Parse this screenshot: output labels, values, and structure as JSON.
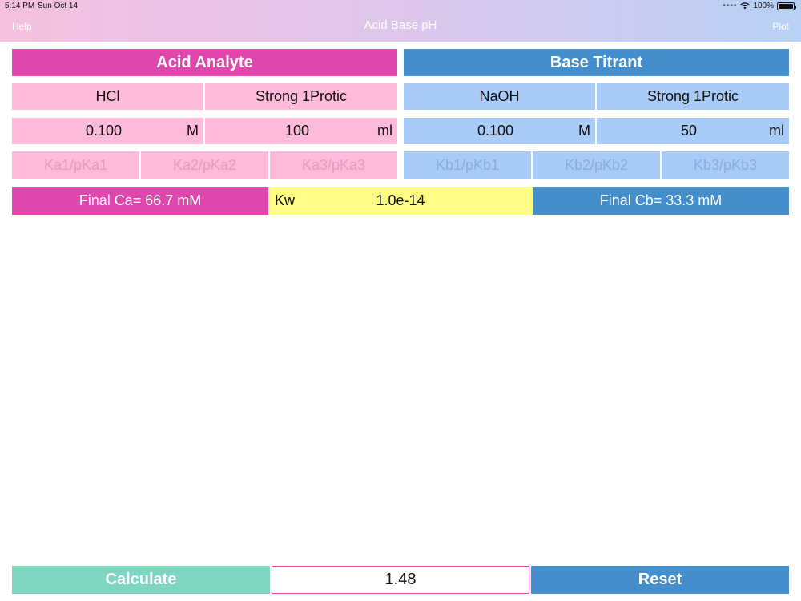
{
  "status": {
    "time": "5:14 PM",
    "date": "Sun Oct 14",
    "battery": "100%"
  },
  "nav": {
    "help": "Help",
    "title": "Acid Base pH",
    "plot": "Plot"
  },
  "acid": {
    "header": "Acid Analyte",
    "name": "HCl",
    "type": "Strong 1Protic",
    "concentration": "0.100",
    "conc_unit": "M",
    "volume": "100",
    "vol_unit": "ml",
    "ka1": "Ka1/pKa1",
    "ka2": "Ka2/pKa2",
    "ka3": "Ka3/pKa3",
    "final": "Final Ca=  66.7 mM"
  },
  "base": {
    "header": "Base Titrant",
    "name": "NaOH",
    "type": "Strong 1Protic",
    "concentration": "0.100",
    "conc_unit": "M",
    "volume": "50",
    "vol_unit": "ml",
    "kb1": "Kb1/pKb1",
    "kb2": "Kb2/pKb2",
    "kb3": "Kb3/pKb3",
    "final": "Final Cb=  33.3 mM"
  },
  "kw": {
    "label": "Kw",
    "value": "1.0e-14"
  },
  "bottom": {
    "calculate": "Calculate",
    "result": "1.48",
    "reset": "Reset"
  },
  "colors": {
    "acid_dark": "#de48ad",
    "acid_light": "#fdbad9",
    "base_dark": "#448ecb",
    "base_light": "#a9cbf7",
    "kw": "#fdfd85",
    "calculate": "#7fd6c0"
  }
}
